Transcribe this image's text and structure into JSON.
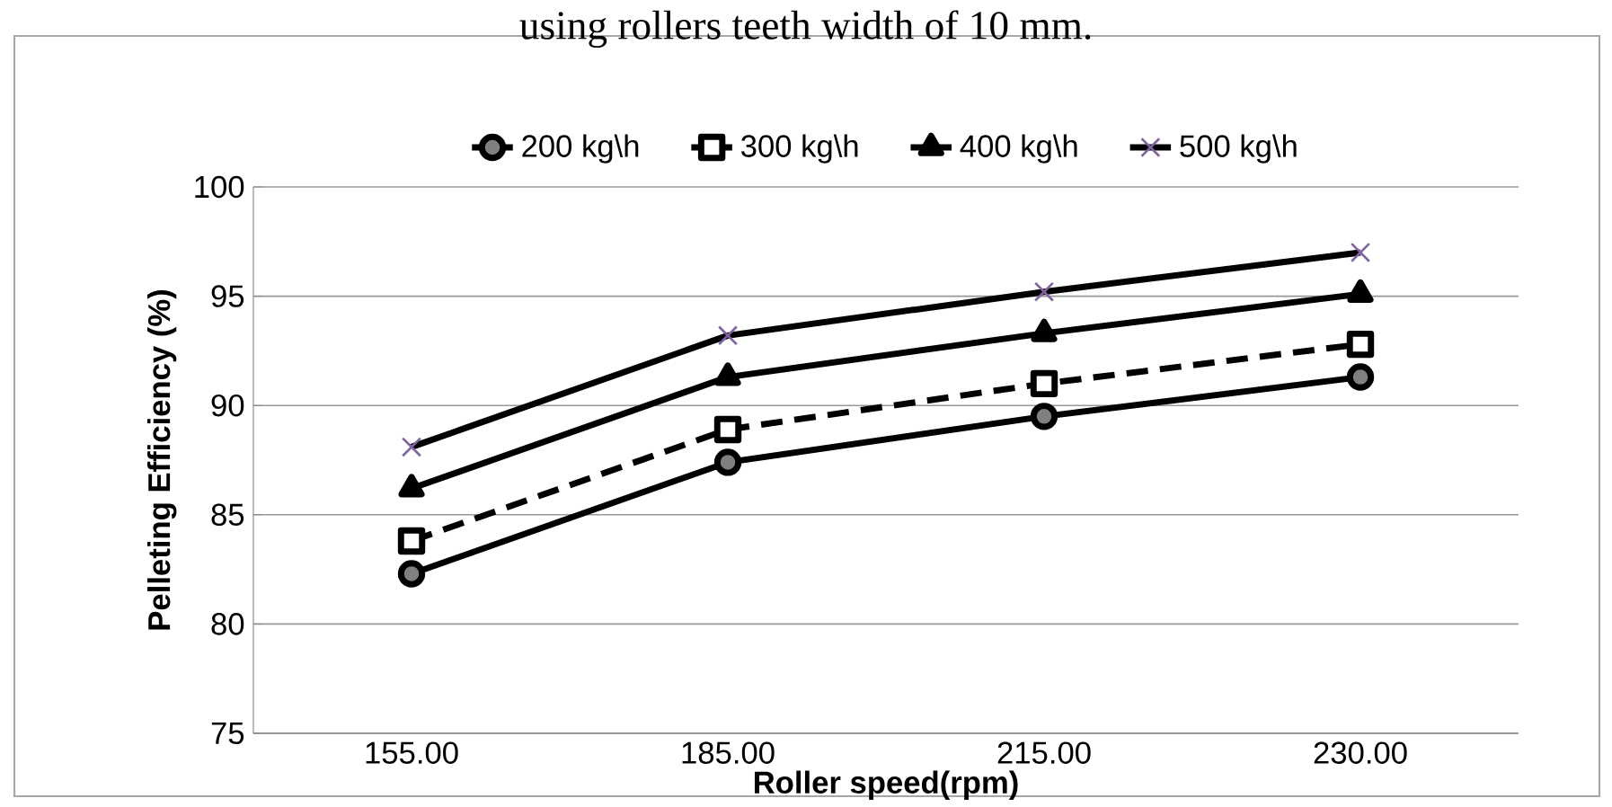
{
  "chart_data": {
    "type": "line",
    "title": "using rollers teeth width of 10 mm.",
    "xlabel": "Roller speed(rpm)",
    "ylabel": "Pelleting Efficiency (%)",
    "categories": [
      "155.00",
      "185.00",
      "215.00",
      "230.00"
    ],
    "series": [
      {
        "name": "200 kg\\h",
        "color": "#000000",
        "marker": "circle",
        "line_style": "solid",
        "values": [
          82.3,
          87.4,
          89.5,
          91.3
        ]
      },
      {
        "name": "300 kg\\h",
        "color": "#000000",
        "marker": "square",
        "line_style": "dashed",
        "values": [
          83.8,
          88.9,
          91.0,
          92.8
        ]
      },
      {
        "name": "400 kg\\h",
        "color": "#000000",
        "marker": "triangle",
        "line_style": "solid",
        "values": [
          86.2,
          91.3,
          93.3,
          95.1
        ]
      },
      {
        "name": "500 kg\\h",
        "color": "#000000",
        "marker": "cross",
        "line_style": "solid",
        "values": [
          88.1,
          93.2,
          95.2,
          97.0
        ]
      }
    ],
    "ylim": [
      75,
      100
    ],
    "yticks": [
      75,
      80,
      85,
      90,
      95,
      100
    ],
    "grid": "y",
    "legend": "top"
  }
}
